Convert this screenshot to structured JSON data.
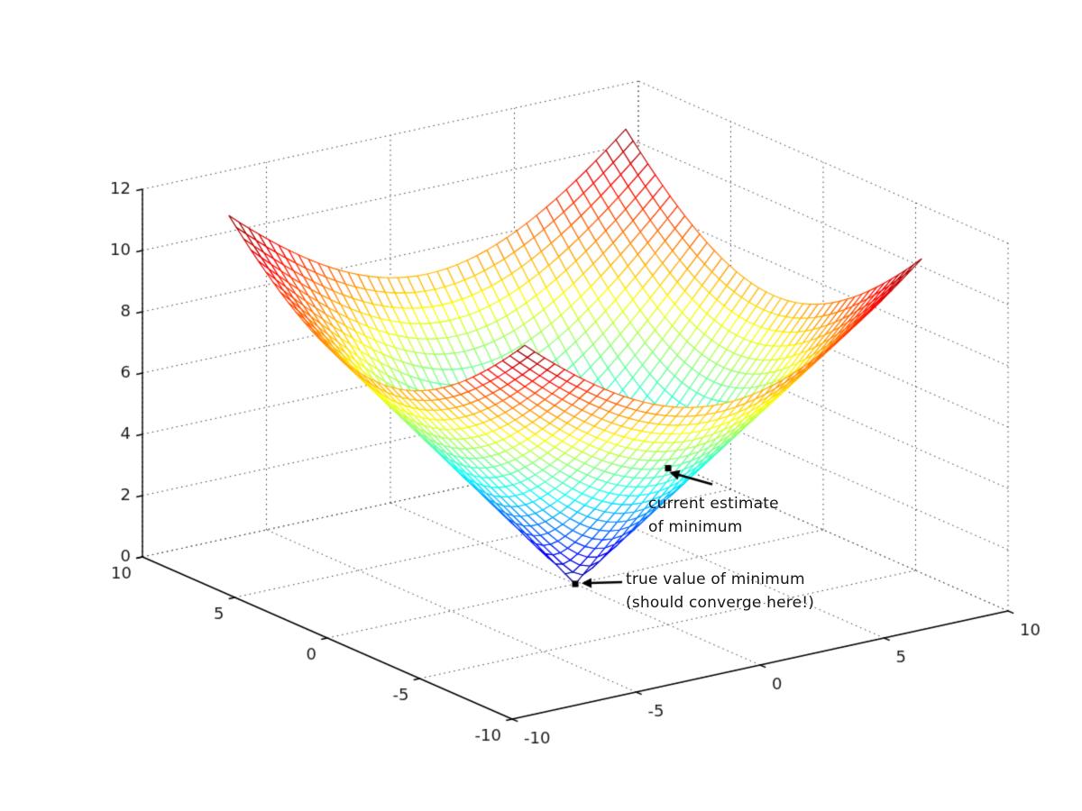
{
  "figure": {
    "background": "#ffffff",
    "kind": "matlab-style 3d mesh figure"
  },
  "chart_data": {
    "type": "surface",
    "title": "",
    "surface": {
      "formula": "z = sqrt(x^2 + y^2)",
      "x_domain": [
        -8,
        8
      ],
      "y_domain": [
        -8,
        8
      ],
      "grid_steps": 40,
      "z_min": 0,
      "z_max": 11.31,
      "colormap": "jet",
      "face_color": "#ffffff"
    },
    "axes": {
      "x": {
        "range": [
          -10,
          10
        ],
        "ticks": [
          -10,
          -5,
          0,
          5,
          10
        ]
      },
      "y": {
        "range": [
          -10,
          10
        ],
        "ticks": [
          -10,
          -5,
          0,
          5,
          10
        ]
      },
      "z": {
        "range": [
          0,
          12
        ],
        "ticks": [
          0,
          2,
          4,
          6,
          8,
          10,
          12
        ]
      }
    },
    "grid": true,
    "view": {
      "azimuth": -37.5,
      "elevation": 30
    },
    "grid_color": "#3c3c3c",
    "axis_color": "#000000",
    "annotations": [
      {
        "id": "current-estimate",
        "label_lines": [
          "current estimate",
          "of minimum"
        ],
        "marker": "black-square",
        "point": {
          "x": 3.3,
          "y": -0.6
        }
      },
      {
        "id": "true-minimum",
        "label_lines": [
          "true value of minimum",
          "(should converge here!)"
        ],
        "marker": "black-square",
        "point": {
          "x": 0,
          "y": 0
        }
      }
    ]
  }
}
